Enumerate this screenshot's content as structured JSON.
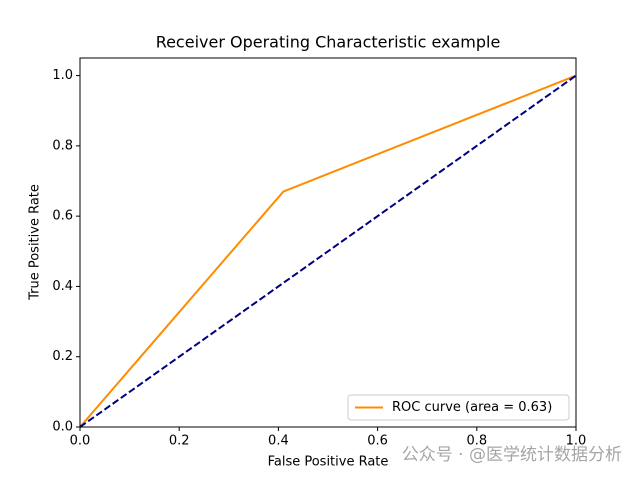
{
  "chart_data": {
    "type": "line",
    "title": "Receiver Operating Characteristic example",
    "xlabel": "False Positive Rate",
    "ylabel": "True Positive Rate",
    "series": [
      {
        "name": "ROC curve (area = 0.63)",
        "color": "#ff8c00",
        "x": [
          0,
          0.41,
          1
        ],
        "values": [
          0,
          0.67,
          1
        ]
      },
      {
        "color": "#000080",
        "dashed": true,
        "x": [
          0,
          1
        ],
        "values": [
          0,
          1
        ]
      }
    ],
    "xlim": [
      0,
      1
    ],
    "ylim": [
      0,
      1.05
    ],
    "xticks": [
      {
        "value": 0,
        "label": "0.0"
      },
      {
        "value": 0.2,
        "label": "0.2"
      },
      {
        "value": 0.4,
        "label": "0.4"
      },
      {
        "value": 0.6,
        "label": "0.6"
      },
      {
        "value": 0.8,
        "label": "0.8"
      },
      {
        "value": 1,
        "label": "1.0"
      }
    ],
    "yticks": [
      {
        "value": 0,
        "label": "0.0"
      },
      {
        "value": 0.2,
        "label": "0.2"
      },
      {
        "value": 0.4,
        "label": "0.4"
      },
      {
        "value": 0.6,
        "label": "0.6"
      },
      {
        "value": 0.8,
        "label": "0.8"
      },
      {
        "value": 1,
        "label": "1.0"
      }
    ],
    "legend": "lower right",
    "watermark": "公众号 · @医学统计数据分析"
  }
}
